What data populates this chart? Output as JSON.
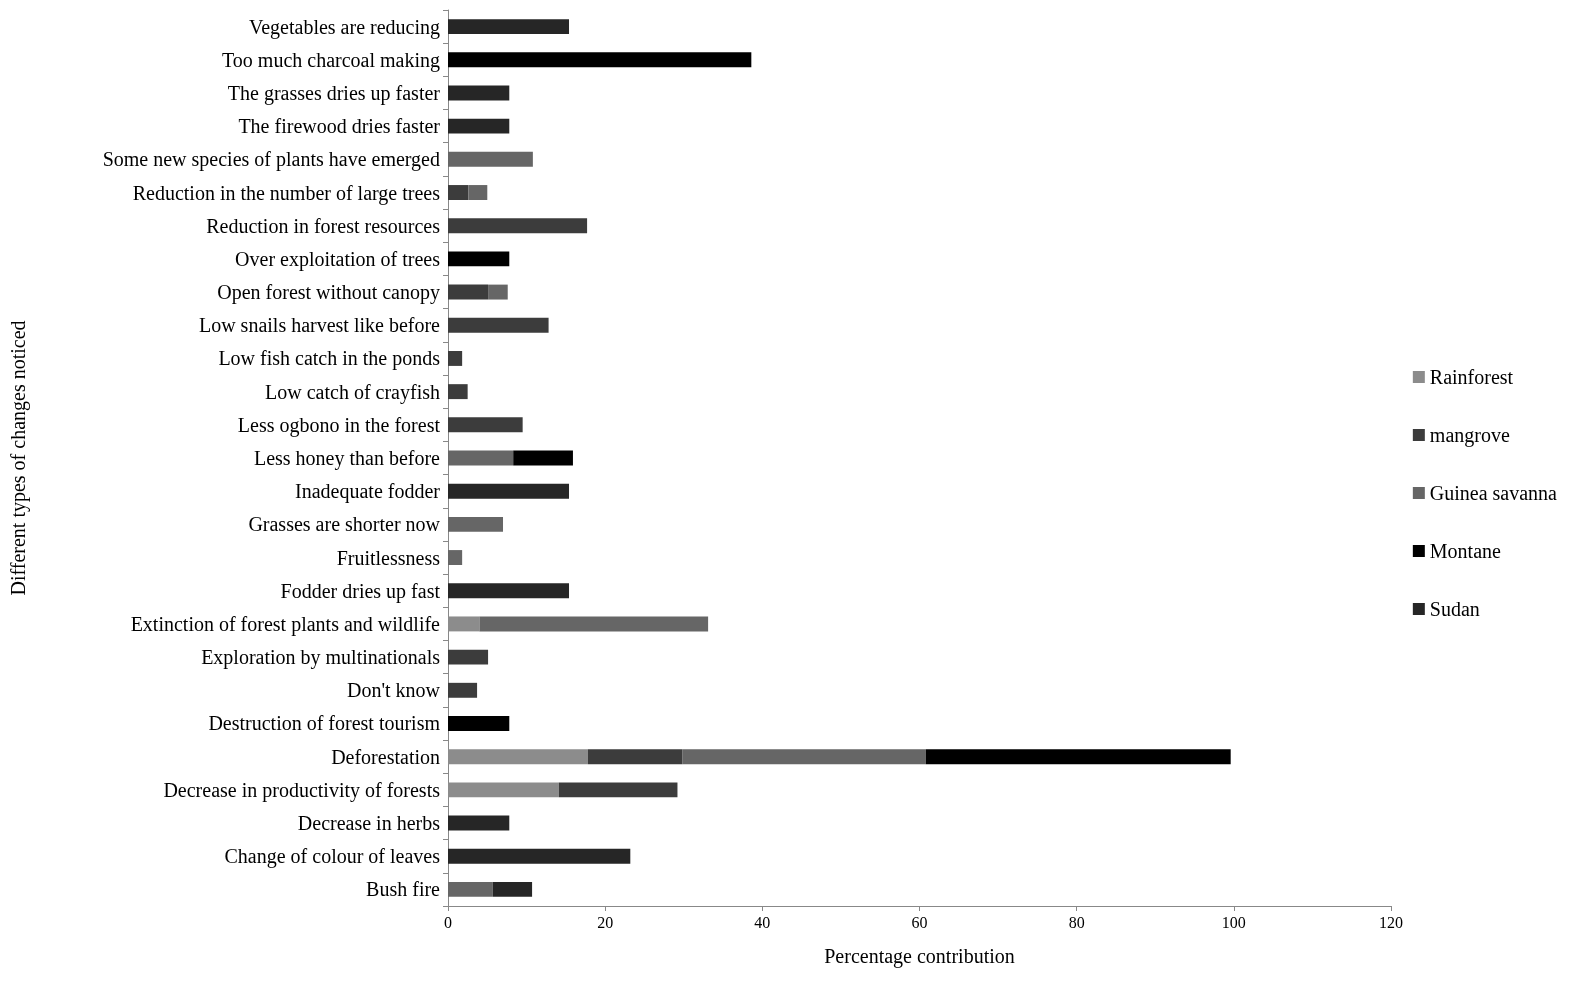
{
  "chart_data": {
    "type": "bar",
    "orientation": "horizontal",
    "stacked": true,
    "xlabel": "Percentage contribution",
    "ylabel": "Different types of changes noticed",
    "categories": [
      "Vegetables are reducing",
      "Too much charcoal making",
      "The grasses dries up faster",
      "The firewood dries faster",
      "Some new species of plants have emerged",
      "Reduction in the number of large trees",
      "Reduction in forest resources",
      "Over exploitation of trees",
      "Open forest without canopy",
      "Low snails harvest like before",
      "Low fish catch in the ponds",
      "Low catch of crayfish",
      "Less ogbono in the forest",
      "Less honey than before",
      "Inadequate fodder",
      "Grasses are shorter now",
      "Fruitlessness",
      "Fodder dries up fast",
      "Extinction of forest plants and wildlife",
      "Exploration by multinationals",
      "Don't know",
      "Destruction of forest tourism",
      "Deforestation",
      "Decrease in productivity of forests",
      "Decrease in herbs",
      "Change of colour of leaves",
      "Bush fire"
    ],
    "series": [
      {
        "name": "Rainforest",
        "color": "#8c8c8c",
        "values": [
          null,
          null,
          null,
          null,
          null,
          null,
          null,
          null,
          null,
          null,
          null,
          null,
          null,
          null,
          null,
          null,
          null,
          null,
          4.0,
          null,
          null,
          null,
          17.8,
          14.1,
          null,
          null,
          null
        ]
      },
      {
        "name": "mangrove",
        "color": "#3c3c3c",
        "values": [
          null,
          null,
          null,
          null,
          null,
          2.6,
          17.7,
          null,
          5.1,
          12.8,
          1.8,
          2.5,
          9.5,
          null,
          null,
          null,
          null,
          null,
          null,
          5.1,
          3.7,
          null,
          12.0,
          15.1,
          null,
          null,
          null
        ]
      },
      {
        "name": "Guinea savanna",
        "color": "#666666",
        "values": [
          null,
          null,
          null,
          null,
          10.8,
          2.4,
          null,
          null,
          2.5,
          null,
          null,
          null,
          null,
          8.3,
          null,
          7.0,
          1.8,
          null,
          29.1,
          null,
          null,
          null,
          31.0,
          null,
          null,
          null,
          5.7
        ]
      },
      {
        "name": "Montane",
        "color": "#000000",
        "values": [
          null,
          38.6,
          null,
          null,
          null,
          null,
          null,
          7.8,
          null,
          null,
          null,
          null,
          null,
          7.6,
          null,
          null,
          null,
          null,
          null,
          null,
          null,
          7.8,
          38.8,
          null,
          null,
          null,
          null
        ]
      },
      {
        "name": "Sudan",
        "color": "#262626",
        "values": [
          15.4,
          null,
          7.8,
          7.8,
          null,
          null,
          null,
          null,
          null,
          null,
          null,
          null,
          null,
          null,
          15.4,
          null,
          null,
          15.4,
          null,
          null,
          null,
          null,
          null,
          null,
          7.8,
          23.2,
          5.0
        ]
      }
    ],
    "xlim": [
      0,
      120
    ],
    "xticks": [
      0,
      20,
      40,
      60,
      80,
      100,
      120
    ],
    "grid": false,
    "legend": "right"
  }
}
